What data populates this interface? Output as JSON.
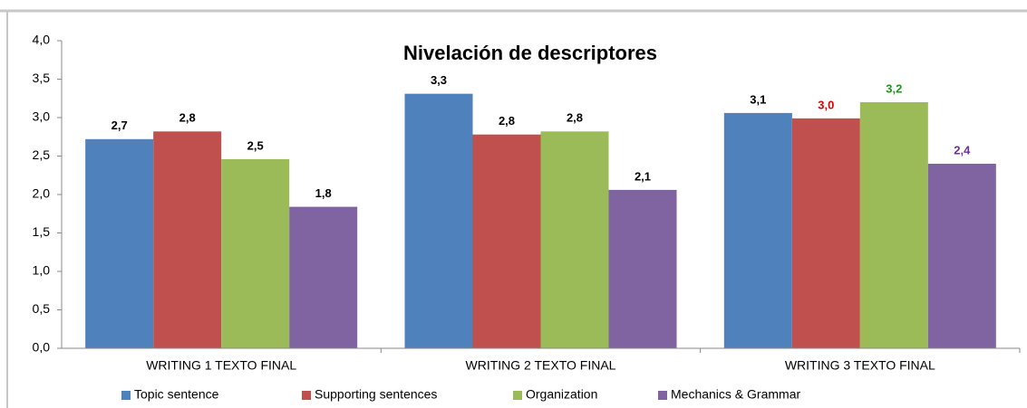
{
  "chart_data": {
    "type": "bar",
    "title": "Nivelación de descriptores",
    "categories": [
      "WRITING 1  TEXTO FINAL",
      "WRITING 2 TEXTO FINAL",
      "WRITING 3 TEXTO FINAL"
    ],
    "series": [
      {
        "name": "Topic sentence",
        "color": "#4f81bd",
        "values": [
          2.72,
          3.31,
          3.06
        ],
        "value_labels": [
          "2,7",
          "3,3",
          "3,1"
        ],
        "value_label_colors": [
          "#000000",
          "#000000",
          "#000000"
        ]
      },
      {
        "name": "Supporting sentences",
        "color": "#c0504d",
        "values": [
          2.82,
          2.78,
          2.99
        ],
        "value_labels": [
          "2,8",
          "2,8",
          "3,0"
        ],
        "value_label_colors": [
          "#000000",
          "#000000",
          "#e00000"
        ]
      },
      {
        "name": "Organization",
        "color": "#9bbb59",
        "values": [
          2.46,
          2.82,
          3.2
        ],
        "value_labels": [
          "2,5",
          "2,8",
          "3,2"
        ],
        "value_label_colors": [
          "#000000",
          "#000000",
          "#1a9a1a"
        ]
      },
      {
        "name": "Mechanics & Grammar",
        "color": "#8064a2",
        "values": [
          1.84,
          2.06,
          2.4
        ],
        "value_labels": [
          "1,8",
          "2,1",
          "2,4"
        ],
        "value_label_colors": [
          "#000000",
          "#000000",
          "#7030a0"
        ]
      }
    ],
    "ylim": [
      0,
      4
    ],
    "yticks": [
      {
        "value": 0,
        "label": "0,0"
      },
      {
        "value": 0.5,
        "label": "0,5"
      },
      {
        "value": 1,
        "label": "1,0"
      },
      {
        "value": 1.5,
        "label": "1,5"
      },
      {
        "value": 2,
        "label": "2,0"
      },
      {
        "value": 2.5,
        "label": "2,5"
      },
      {
        "value": 3,
        "label": "3,0"
      },
      {
        "value": 3.5,
        "label": "3,5"
      },
      {
        "value": 4,
        "label": "4,0"
      }
    ],
    "grid": false,
    "legend": "bottom"
  }
}
